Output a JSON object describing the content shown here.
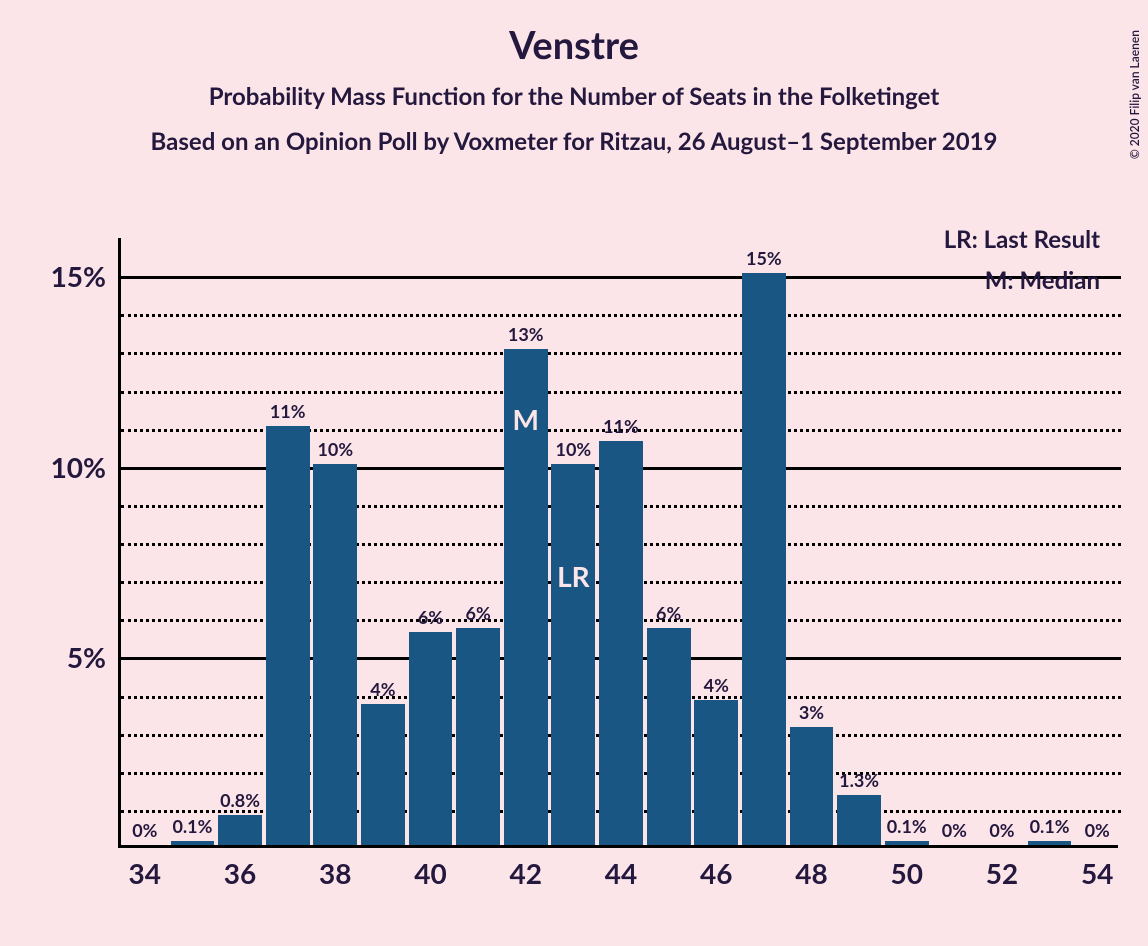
{
  "title": "Venstre",
  "subtitle1": "Probability Mass Function for the Number of Seats in the Folketinget",
  "subtitle2": "Based on an Opinion Poll by Voxmeter for Ritzau, 26 August–1 September 2019",
  "copyright": "© 2020 Filip van Laenen",
  "legend": {
    "lr": "LR: Last Result",
    "m": "M: Median"
  },
  "chart": {
    "type": "bar",
    "background_color": "#fbe5e8",
    "bar_color": "#1a5684",
    "text_color": "#25183e",
    "inner_label_color": "#fbe5e8",
    "axis_color": "#000000",
    "grid_solid_color": "#000000",
    "grid_dotted_color": "#000000",
    "xlim": [
      33.5,
      54.5
    ],
    "ylim": [
      0,
      16
    ],
    "y_solid_ticks": [
      5,
      10,
      15
    ],
    "y_dotted_ticks": [
      1,
      2,
      3,
      4,
      6,
      7,
      8,
      9,
      11,
      12,
      13,
      14
    ],
    "y_tick_labels": [
      {
        "value": 5,
        "label": "5%"
      },
      {
        "value": 10,
        "label": "10%"
      },
      {
        "value": 15,
        "label": "15%"
      }
    ],
    "x_tick_labels": [
      34,
      36,
      38,
      40,
      42,
      44,
      46,
      48,
      50,
      52,
      54
    ],
    "bar_width_ratio": 0.92,
    "title_fontsize": 38,
    "subtitle_fontsize": 24,
    "ytick_fontsize": 28,
    "xtick_fontsize": 28,
    "barlabel_fontsize": 18,
    "innerlabel_fontsize": 28,
    "legend_fontsize": 24,
    "bars": [
      {
        "x": 34,
        "value": 0,
        "label": "0%"
      },
      {
        "x": 35,
        "value": 0.1,
        "label": "0.1%"
      },
      {
        "x": 36,
        "value": 0.8,
        "label": "0.8%"
      },
      {
        "x": 37,
        "value": 11,
        "label": "11%"
      },
      {
        "x": 38,
        "value": 10,
        "label": "10%"
      },
      {
        "x": 39,
        "value": 3.7,
        "label": "4%"
      },
      {
        "x": 40,
        "value": 5.6,
        "label": "6%"
      },
      {
        "x": 41,
        "value": 5.7,
        "label": "6%"
      },
      {
        "x": 42,
        "value": 13,
        "label": "13%",
        "inner_label": "M"
      },
      {
        "x": 43,
        "value": 10,
        "label": "10%",
        "inner_label": "LR"
      },
      {
        "x": 44,
        "value": 10.6,
        "label": "11%"
      },
      {
        "x": 45,
        "value": 5.7,
        "label": "6%"
      },
      {
        "x": 46,
        "value": 3.8,
        "label": "4%"
      },
      {
        "x": 47,
        "value": 15,
        "label": "15%"
      },
      {
        "x": 48,
        "value": 3.1,
        "label": "3%"
      },
      {
        "x": 49,
        "value": 1.3,
        "label": "1.3%"
      },
      {
        "x": 50,
        "value": 0.1,
        "label": "0.1%"
      },
      {
        "x": 51,
        "value": 0,
        "label": "0%"
      },
      {
        "x": 52,
        "value": 0,
        "label": "0%"
      },
      {
        "x": 53,
        "value": 0.1,
        "label": "0.1%"
      },
      {
        "x": 54,
        "value": 0,
        "label": "0%"
      }
    ]
  }
}
